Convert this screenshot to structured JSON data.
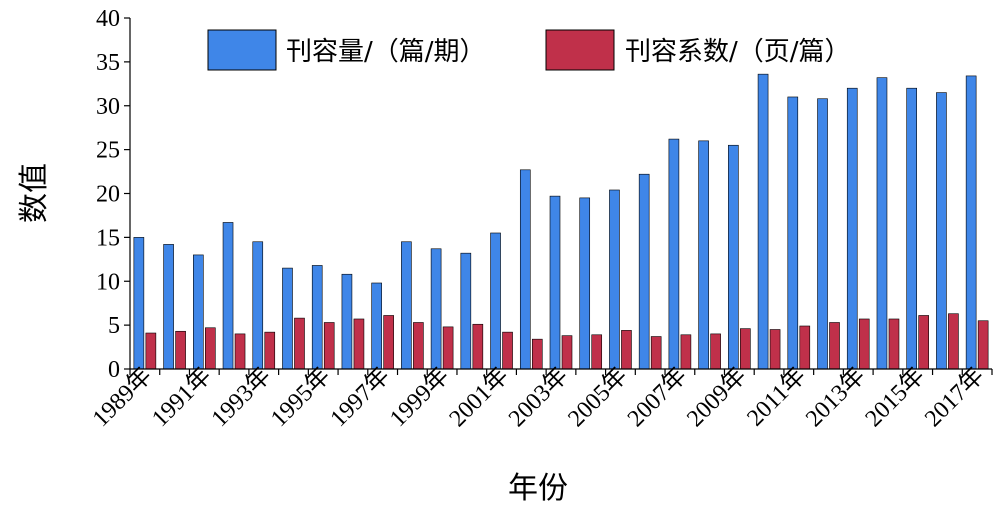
{
  "chart_data": {
    "type": "bar",
    "title": "",
    "xlabel": "年份",
    "ylabel": "数值",
    "ylim": [
      0,
      40
    ],
    "yticks": [
      0,
      5,
      10,
      15,
      20,
      25,
      30,
      35,
      40
    ],
    "legend_position": "top-right",
    "grid": false,
    "categories": [
      "1989年",
      "1990年",
      "1991年",
      "1992年",
      "1993年",
      "1994年",
      "1995年",
      "1996年",
      "1997年",
      "1998年",
      "1999年",
      "2000年",
      "2001年",
      "2002年",
      "2003年",
      "2004年",
      "2005年",
      "2006年",
      "2007年",
      "2008年",
      "2009年",
      "2010年",
      "2011年",
      "2012年",
      "2013年",
      "2014年",
      "2015年",
      "2016年",
      "2017年"
    ],
    "category_labels_shown": [
      "1989年",
      "1991年",
      "1993年",
      "1995年",
      "1997年",
      "1999年",
      "2001年",
      "2003年",
      "2005年",
      "2007年",
      "2009年",
      "2011年",
      "2013年",
      "2015年",
      "2017年"
    ],
    "series": [
      {
        "name": "刊容量/（篇/期）",
        "color": "#3f86e8",
        "values": [
          15.0,
          14.2,
          13.0,
          16.7,
          14.5,
          11.5,
          11.8,
          10.8,
          9.8,
          14.5,
          13.7,
          13.2,
          15.5,
          22.7,
          19.7,
          19.5,
          20.4,
          22.2,
          26.2,
          26.0,
          25.5,
          33.6,
          31.0,
          30.8,
          32.0,
          33.2,
          32.0,
          31.5,
          33.4
        ]
      },
      {
        "name": "刊容系数/（页/篇）",
        "color": "#c0304a",
        "values": [
          4.1,
          4.3,
          4.7,
          4.0,
          4.2,
          5.8,
          5.3,
          5.7,
          6.1,
          5.3,
          4.8,
          5.1,
          4.2,
          3.4,
          3.8,
          3.9,
          4.4,
          3.7,
          3.9,
          4.0,
          4.6,
          4.5,
          4.9,
          5.3,
          5.7,
          5.7,
          6.1,
          6.3,
          5.5
        ]
      }
    ]
  }
}
